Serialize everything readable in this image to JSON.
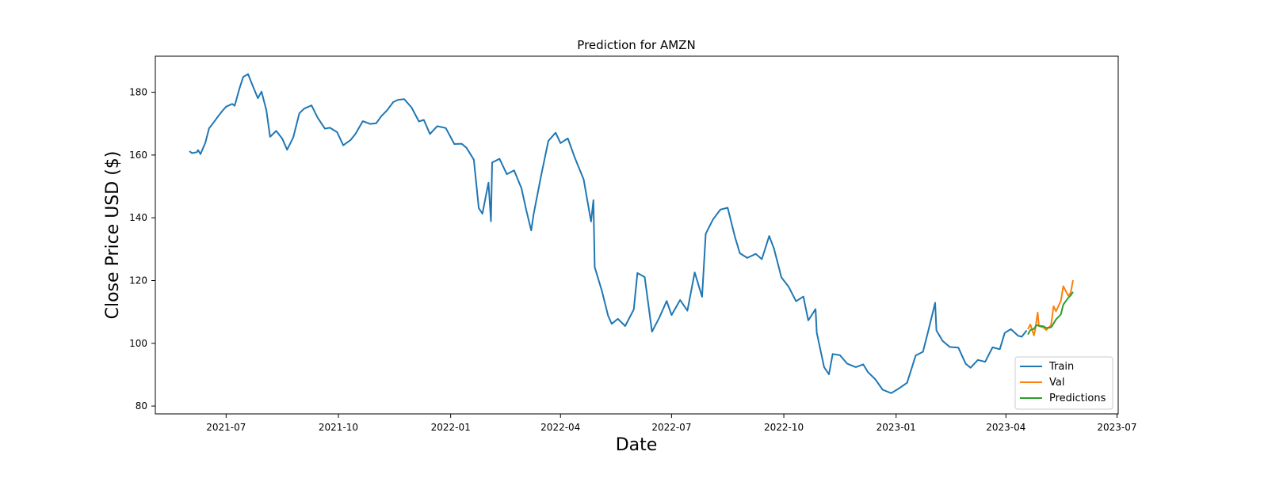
{
  "chart_data": {
    "type": "line",
    "title": "Prediction for AMZN",
    "xlabel": "Date",
    "ylabel": "Close Price USD ($)",
    "xlim": [
      "2021-05-04",
      "2023-07-02"
    ],
    "ylim": [
      77.5,
      191.5
    ],
    "x_ticks": [
      "2021-07",
      "2021-10",
      "2022-01",
      "2022-04",
      "2022-07",
      "2022-10",
      "2023-01",
      "2023-04",
      "2023-07"
    ],
    "y_ticks": [
      80,
      100,
      120,
      140,
      160,
      180
    ],
    "grid": false,
    "legend_position": "lower-right",
    "series": [
      {
        "name": "Train",
        "color": "#1f77b4",
        "x": [
          "2021-06-01",
          "2021-06-03",
          "2021-06-07",
          "2021-06-08",
          "2021-06-10",
          "2021-06-14",
          "2021-06-17",
          "2021-06-21",
          "2021-06-24",
          "2021-06-28",
          "2021-07-01",
          "2021-07-06",
          "2021-07-08",
          "2021-07-12",
          "2021-07-15",
          "2021-07-19",
          "2021-07-23",
          "2021-07-27",
          "2021-07-30",
          "2021-08-03",
          "2021-08-06",
          "2021-08-11",
          "2021-08-16",
          "2021-08-20",
          "2021-08-25",
          "2021-08-30",
          "2021-09-03",
          "2021-09-09",
          "2021-09-14",
          "2021-09-20",
          "2021-09-24",
          "2021-09-30",
          "2021-10-05",
          "2021-10-11",
          "2021-10-15",
          "2021-10-21",
          "2021-10-27",
          "2021-11-01",
          "2021-11-05",
          "2021-11-10",
          "2021-11-15",
          "2021-11-19",
          "2021-11-24",
          "2021-11-30",
          "2021-12-06",
          "2021-12-10",
          "2021-12-15",
          "2021-12-21",
          "2021-12-28",
          "2022-01-04",
          "2022-01-10",
          "2022-01-14",
          "2022-01-20",
          "2022-01-24",
          "2022-01-27",
          "2022-02-01",
          "2022-02-03",
          "2022-02-04",
          "2022-02-10",
          "2022-02-16",
          "2022-02-22",
          "2022-02-28",
          "2022-03-04",
          "2022-03-08",
          "2022-03-10",
          "2022-03-16",
          "2022-03-22",
          "2022-03-28",
          "2022-04-01",
          "2022-04-07",
          "2022-04-13",
          "2022-04-20",
          "2022-04-26",
          "2022-04-28",
          "2022-04-29",
          "2022-05-05",
          "2022-05-10",
          "2022-05-13",
          "2022-05-18",
          "2022-05-24",
          "2022-05-31",
          "2022-06-03",
          "2022-06-09",
          "2022-06-15",
          "2022-06-21",
          "2022-06-27",
          "2022-07-01",
          "2022-07-08",
          "2022-07-14",
          "2022-07-20",
          "2022-07-26",
          "2022-07-29",
          "2022-08-04",
          "2022-08-10",
          "2022-08-16",
          "2022-08-22",
          "2022-08-26",
          "2022-09-01",
          "2022-09-08",
          "2022-09-13",
          "2022-09-19",
          "2022-09-23",
          "2022-09-29",
          "2022-10-05",
          "2022-10-11",
          "2022-10-17",
          "2022-10-21",
          "2022-10-27",
          "2022-10-28",
          "2022-11-03",
          "2022-11-07",
          "2022-11-10",
          "2022-11-16",
          "2022-11-22",
          "2022-11-29",
          "2022-12-05",
          "2022-12-09",
          "2022-12-15",
          "2022-12-21",
          "2022-12-28",
          "2023-01-04",
          "2023-01-10",
          "2023-01-17",
          "2023-01-23",
          "2023-01-27",
          "2023-02-02",
          "2023-02-03",
          "2023-02-08",
          "2023-02-14",
          "2023-02-21",
          "2023-02-27",
          "2023-03-03",
          "2023-03-09",
          "2023-03-15",
          "2023-03-21",
          "2023-03-27",
          "2023-03-31",
          "2023-04-05",
          "2023-04-11",
          "2023-04-14",
          "2023-04-18"
        ],
        "values": [
          161.2,
          160.6,
          160.9,
          161.6,
          160.3,
          163.9,
          168.5,
          170.5,
          172.1,
          174.1,
          175.4,
          176.3,
          175.7,
          181.3,
          184.9,
          185.8,
          181.9,
          178.1,
          180.2,
          174.3,
          165.8,
          167.7,
          165.2,
          161.7,
          165.6,
          173.3,
          174.8,
          175.8,
          171.9,
          168.4,
          168.7,
          167.3,
          163.1,
          164.8,
          166.7,
          170.8,
          169.9,
          170.1,
          172.3,
          174.3,
          176.9,
          177.6,
          177.8,
          175.1,
          170.7,
          171.2,
          166.7,
          169.2,
          168.6,
          163.5,
          163.6,
          162.3,
          158.5,
          143.1,
          141.3,
          151.2,
          138.9,
          157.6,
          158.8,
          153.9,
          155.1,
          149.4,
          142.4,
          136.0,
          141.2,
          153.2,
          164.5,
          167.1,
          163.8,
          165.3,
          158.9,
          152.2,
          138.8,
          145.6,
          124.3,
          116.6,
          108.8,
          106.2,
          107.8,
          105.5,
          110.8,
          122.4,
          121.1,
          103.7,
          108.2,
          113.5,
          109.0,
          113.8,
          110.4,
          122.6,
          114.8,
          134.9,
          139.5,
          142.6,
          143.2,
          133.8,
          128.7,
          127.2,
          128.5,
          126.8,
          134.2,
          130.1,
          121.0,
          118.0,
          113.4,
          114.9,
          107.3,
          110.9,
          103.4,
          92.4,
          90.1,
          96.6,
          96.2,
          93.5,
          92.4,
          93.3,
          90.8,
          88.5,
          85.2,
          84.1,
          85.8,
          87.4,
          96.1,
          97.3,
          103.4,
          112.9,
          104.1,
          100.8,
          98.8,
          98.6,
          93.5,
          92.2,
          94.7,
          94.1,
          98.7,
          98.1,
          103.3,
          104.5,
          102.4,
          102.1,
          104.1
        ]
      },
      {
        "name": "Val",
        "color": "#ff7f0e",
        "x": [
          "2023-04-19",
          "2023-04-21",
          "2023-04-24",
          "2023-04-25",
          "2023-04-27",
          "2023-04-28",
          "2023-05-02",
          "2023-05-04",
          "2023-05-08",
          "2023-05-10",
          "2023-05-12",
          "2023-05-16",
          "2023-05-18",
          "2023-05-22",
          "2023-05-24",
          "2023-05-26"
        ],
        "values": [
          104.5,
          106.0,
          102.5,
          104.5,
          109.8,
          105.5,
          105.0,
          104.2,
          105.8,
          111.8,
          110.2,
          113.5,
          118.2,
          115.2,
          116.0,
          120.1
        ]
      },
      {
        "name": "Predictions",
        "color": "#2ca02c",
        "x": [
          "2023-04-19",
          "2023-04-21",
          "2023-04-24",
          "2023-04-26",
          "2023-04-28",
          "2023-05-02",
          "2023-05-04",
          "2023-05-08",
          "2023-05-10",
          "2023-05-12",
          "2023-05-16",
          "2023-05-18",
          "2023-05-22",
          "2023-05-24",
          "2023-05-26"
        ],
        "values": [
          102.8,
          104.2,
          104.6,
          105.8,
          105.6,
          105.4,
          104.9,
          105.1,
          106.3,
          107.6,
          109.2,
          112.3,
          114.5,
          115.2,
          116.4
        ]
      }
    ]
  }
}
